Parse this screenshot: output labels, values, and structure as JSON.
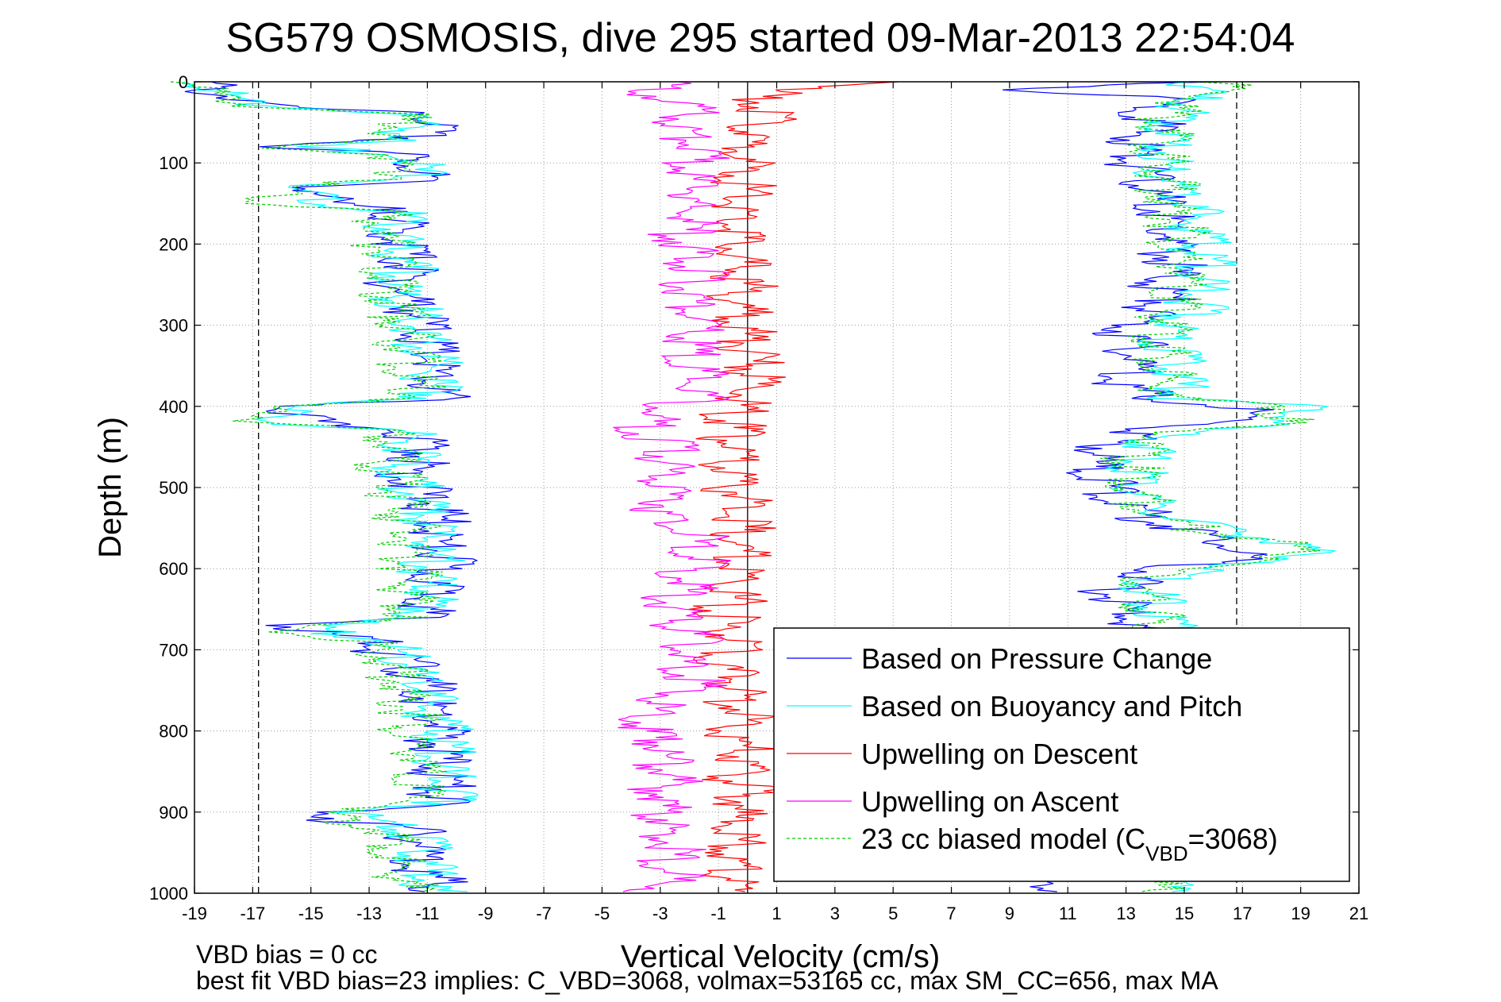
{
  "chart_data": {
    "type": "line",
    "title": "SG579 OSMOSIS, dive 295 started 09-Mar-2013 22:54:04",
    "xlabel": "Vertical Velocity (cm/s)",
    "ylabel": "Depth (m)",
    "xlim": [
      -19,
      21
    ],
    "ylim": [
      0,
      1000
    ],
    "y_reversed": true,
    "grid": true,
    "legend_placement": "bottom-right",
    "xticks": [
      -19,
      -17,
      -15,
      -13,
      -11,
      -9,
      -7,
      -5,
      -3,
      -1,
      1,
      3,
      5,
      7,
      9,
      11,
      13,
      15,
      17,
      19,
      21
    ],
    "yticks": [
      0,
      100,
      200,
      300,
      400,
      500,
      600,
      700,
      800,
      900,
      1000
    ],
    "reference_lines": [
      {
        "orientation": "vertical",
        "x": -16.8,
        "style": "dashed",
        "color": "#000000"
      },
      {
        "orientation": "vertical",
        "x": 16.8,
        "style": "dashed",
        "color": "#000000"
      },
      {
        "orientation": "vertical",
        "x": 0,
        "style": "solid",
        "color": "#000000"
      }
    ],
    "depth": [
      0,
      10,
      20,
      30,
      40,
      50,
      60,
      70,
      80,
      90,
      100,
      110,
      120,
      130,
      140,
      150,
      160,
      170,
      180,
      190,
      200,
      210,
      220,
      230,
      240,
      250,
      260,
      270,
      280,
      290,
      300,
      310,
      320,
      330,
      340,
      350,
      360,
      370,
      380,
      390,
      400,
      410,
      420,
      430,
      440,
      450,
      460,
      470,
      480,
      490,
      500,
      510,
      520,
      530,
      540,
      550,
      560,
      570,
      580,
      590,
      600,
      610,
      620,
      630,
      640,
      650,
      660,
      670,
      680,
      690,
      700,
      710,
      720,
      730,
      740,
      750,
      760,
      770,
      780,
      790,
      800,
      810,
      820,
      830,
      840,
      850,
      860,
      870,
      880,
      890,
      900,
      910,
      920,
      930,
      940,
      950,
      960,
      970,
      980,
      990
    ],
    "series": [
      {
        "name": "Based on Pressure Change",
        "color": "#0000ff",
        "dash": "solid",
        "descent": [
          -18.0,
          -18.0,
          -17.0,
          -16.0,
          -10.5,
          -10.0,
          -10.5,
          -11.0,
          -16.0,
          -11.0,
          -11.0,
          -10.5,
          -10.5,
          -14.0,
          -14.0,
          -14.0,
          -11.0,
          -11.5,
          -11.5,
          -11.5,
          -11.3,
          -11.0,
          -11.2,
          -11.0,
          -11.3,
          -11.5,
          -11.2,
          -11.0,
          -10.8,
          -10.7,
          -10.5,
          -10.4,
          -10.5,
          -10.4,
          -10.2,
          -10.3,
          -10.5,
          -10.3,
          -10.2,
          -10.0,
          -15.0,
          -15.0,
          -14.5,
          -11.0,
          -10.8,
          -10.5,
          -10.5,
          -10.8,
          -11.0,
          -11.0,
          -10.8,
          -10.5,
          -10.3,
          -10.2,
          -10.0,
          -10.0,
          -10.0,
          -10.2,
          -10.0,
          -9.8,
          -10.0,
          -10.2,
          -10.3,
          -10.0,
          -10.0,
          -10.5,
          -10.8,
          -15.0,
          -14.0,
          -12.0,
          -12.0,
          -11.5,
          -11.0,
          -11.0,
          -10.5,
          -10.5,
          -10.5,
          -10.4,
          -10.2,
          -10.0,
          -10.0,
          -10.2,
          -10.0,
          -9.8,
          -10.0,
          -10.0,
          -9.9,
          -9.8,
          -10.0,
          -10.0,
          -13.5,
          -13.5,
          -11.0,
          -10.8,
          -10.5,
          -10.5,
          -10.6,
          -10.5,
          -10.3,
          -10.0
        ],
        "ascent": [
          16.0,
          10.0,
          15.0,
          14.5,
          14.5,
          14.6,
          14.2,
          14.0,
          14.0,
          13.8,
          14.0,
          14.0,
          14.2,
          14.5,
          14.5,
          14.6,
          14.8,
          15.0,
          15.0,
          15.2,
          15.0,
          15.0,
          15.2,
          15.3,
          15.0,
          14.8,
          14.8,
          15.0,
          14.5,
          14.0,
          13.8,
          13.5,
          13.8,
          14.0,
          13.8,
          14.0,
          13.8,
          13.5,
          14.0,
          14.2,
          17.5,
          17.5,
          17.2,
          14.0,
          13.5,
          13.0,
          12.8,
          12.5,
          12.5,
          12.8,
          13.0,
          13.2,
          13.5,
          14.0,
          14.5,
          15.5,
          16.5,
          17.5,
          18.0,
          17.0,
          15.0,
          14.0,
          13.5,
          13.0,
          13.3,
          13.5,
          13.8,
          14.0,
          14.0,
          14.0,
          14.0,
          14.0,
          14.0,
          14.0,
          14.0,
          14.0,
          14.0,
          14.0,
          14.0,
          14.0,
          14.0,
          14.0,
          14.0,
          14.0,
          14.0,
          14.0,
          14.0,
          14.0,
          14.0,
          14.0,
          14.0,
          14.0,
          14.0,
          14.0,
          14.0,
          14.0,
          14.0,
          14.0,
          13.0,
          11.0
        ]
      },
      {
        "name": "Based on Buoyancy and Pitch",
        "color": "#00ffff",
        "dash": "solid",
        "descent": [
          -18.0,
          -18.0,
          -17.0,
          -15.5,
          -11.0,
          -10.8,
          -11.0,
          -11.2,
          -15.0,
          -11.0,
          -11.0,
          -10.8,
          -10.8,
          -15.0,
          -14.5,
          -14.0,
          -11.5,
          -11.5,
          -11.5,
          -11.8,
          -11.5,
          -11.3,
          -11.3,
          -11.2,
          -11.3,
          -11.5,
          -11.4,
          -11.2,
          -11.0,
          -11.0,
          -10.8,
          -10.8,
          -10.6,
          -10.5,
          -10.4,
          -10.3,
          -10.2,
          -10.2,
          -10.2,
          -10.2,
          -15.5,
          -15.5,
          -15.5,
          -11.2,
          -11.0,
          -10.8,
          -10.8,
          -11.0,
          -11.2,
          -11.0,
          -11.0,
          -10.8,
          -10.5,
          -10.5,
          -10.4,
          -10.3,
          -10.3,
          -10.3,
          -10.4,
          -10.2,
          -10.4,
          -10.5,
          -10.5,
          -10.3,
          -10.3,
          -10.4,
          -10.5,
          -14.5,
          -13.5,
          -11.5,
          -11.5,
          -11.0,
          -10.8,
          -10.8,
          -10.5,
          -10.5,
          -10.5,
          -10.3,
          -10.2,
          -10.0,
          -10.0,
          -10.0,
          -10.0,
          -9.8,
          -10.0,
          -10.0,
          -9.8,
          -9.8,
          -9.8,
          -9.8,
          -13.0,
          -12.5,
          -11.0,
          -10.8,
          -10.6,
          -10.5,
          -10.5,
          -10.4,
          -10.4,
          -10.2
        ],
        "ascent": [
          16.0,
          16.0,
          15.8,
          15.5,
          15.5,
          15.3,
          15.2,
          15.0,
          15.0,
          15.0,
          15.0,
          15.0,
          15.2,
          15.4,
          15.5,
          15.6,
          15.8,
          16.0,
          16.0,
          16.2,
          16.0,
          16.0,
          16.2,
          16.3,
          16.3,
          16.0,
          16.0,
          16.0,
          16.0,
          15.5,
          15.3,
          15.0,
          15.0,
          15.2,
          15.2,
          15.5,
          15.5,
          15.3,
          15.5,
          15.5,
          19.5,
          19.8,
          19.5,
          15.5,
          15.0,
          14.3,
          14.2,
          14.0,
          14.0,
          14.0,
          14.2,
          14.4,
          14.5,
          15.0,
          15.5,
          16.5,
          18.0,
          19.5,
          20.0,
          19.5,
          16.0,
          15.0,
          14.5,
          14.5,
          14.5,
          14.8,
          15.0,
          15.0,
          15.0,
          15.0,
          15.0,
          15.0,
          15.0,
          15.0,
          15.0,
          15.0,
          15.0,
          15.0,
          15.0,
          15.0,
          15.0,
          15.0,
          15.0,
          15.0,
          15.0,
          15.0,
          15.0,
          15.0,
          15.0,
          15.0,
          15.0,
          15.0,
          15.0,
          15.0,
          15.0,
          15.0,
          15.0,
          15.0,
          15.0,
          15.0
        ]
      },
      {
        "name": "Upwelling on Descent",
        "color": "#ff0000",
        "dash": "solid",
        "values": [
          6.0,
          1.5,
          1.0,
          1.2,
          1.0,
          1.5,
          0.8,
          0.5,
          0.5,
          0.3,
          0.5,
          0.2,
          0.3,
          0.5,
          0.3,
          0.5,
          0.3,
          0.2,
          0.5,
          0.3,
          0.5,
          0.4,
          0.3,
          0.3,
          0.2,
          0.5,
          0.3,
          0.2,
          0.4,
          0.3,
          0.5,
          0.5,
          0.6,
          0.5,
          0.6,
          0.8,
          0.8,
          0.8,
          0.7,
          0.6,
          0.3,
          0.1,
          0.0,
          0.2,
          0.0,
          0.1,
          0.0,
          -0.2,
          0.0,
          0.0,
          0.1,
          0.3,
          0.5,
          0.5,
          0.4,
          0.5,
          0.3,
          0.5,
          0.4,
          0.3,
          0.2,
          0.3,
          0.2,
          0.0,
          0.2,
          -0.3,
          0.0,
          -0.5,
          0.0,
          0.2,
          0.0,
          -0.2,
          -0.3,
          0.0,
          0.2,
          0.3,
          0.0,
          0.3,
          0.5,
          0.4,
          0.3,
          0.2,
          0.5,
          0.3,
          0.5,
          0.3,
          0.2,
          0.5,
          0.3,
          0.5,
          0.2,
          0.1,
          0.3,
          0.2,
          0.0,
          0.2,
          0.3,
          0.2,
          0.1,
          0.0
        ]
      },
      {
        "name": "Upwelling on Ascent",
        "color": "#ff00ff",
        "dash": "solid",
        "values": [
          -2.0,
          -3.0,
          -2.0,
          -1.5,
          -1.5,
          -1.8,
          -1.5,
          -1.5,
          -1.2,
          -1.0,
          -1.5,
          -1.5,
          -1.5,
          -1.0,
          -1.5,
          -1.5,
          -1.5,
          -1.2,
          -1.5,
          -1.8,
          -1.5,
          -1.2,
          -1.5,
          -1.0,
          -1.2,
          -1.5,
          -1.2,
          -1.5,
          -1.3,
          -1.2,
          -1.0,
          -1.2,
          -1.5,
          -1.2,
          -1.5,
          -1.5,
          -1.0,
          -1.2,
          -1.5,
          -1.2,
          -2.0,
          -2.5,
          -2.8,
          -3.0,
          -2.5,
          -2.0,
          -2.2,
          -2.5,
          -2.2,
          -2.0,
          -2.0,
          -2.2,
          -2.0,
          -2.5,
          -2.2,
          -2.0,
          -1.0,
          -1.5,
          -1.5,
          -1.0,
          -1.5,
          -1.5,
          -1.0,
          -1.8,
          -2.0,
          -2.0,
          -1.5,
          -1.8,
          -1.5,
          -1.2,
          -1.5,
          -1.8,
          -1.5,
          -1.2,
          -1.0,
          -1.5,
          -2.0,
          -2.5,
          -3.0,
          -3.0,
          -3.0,
          -2.5,
          -2.0,
          -2.2,
          -2.5,
          -2.0,
          -2.0,
          -2.5,
          -2.0,
          -2.5,
          -2.5,
          -2.0,
          -2.2,
          -2.5,
          -2.0,
          -2.0,
          -2.3,
          -2.0,
          -2.0,
          -2.5
        ]
      },
      {
        "name": "23 cc biased model (C",
        "name_subscript": "VBD",
        "name_suffix": "=3068)",
        "color": "#00cc00",
        "dash": "dashed",
        "descent": [
          -18.5,
          -18.0,
          -17.5,
          -16.0,
          -11.5,
          -11.2,
          -11.5,
          -11.8,
          -16.5,
          -11.5,
          -11.5,
          -11.2,
          -11.2,
          -16.0,
          -15.5,
          -15.5,
          -12.0,
          -12.0,
          -12.0,
          -12.2,
          -12.0,
          -11.8,
          -11.8,
          -11.7,
          -11.8,
          -11.9,
          -11.8,
          -11.6,
          -11.5,
          -11.4,
          -11.3,
          -11.2,
          -11.2,
          -11.1,
          -11.0,
          -11.0,
          -11.0,
          -10.9,
          -10.8,
          -10.8,
          -16.0,
          -16.0,
          -16.0,
          -12.0,
          -11.8,
          -11.7,
          -11.7,
          -11.8,
          -11.8,
          -11.6,
          -11.6,
          -11.5,
          -11.3,
          -11.2,
          -11.2,
          -11.0,
          -11.1,
          -11.0,
          -11.0,
          -11.0,
          -11.0,
          -11.0,
          -11.1,
          -11.0,
          -11.0,
          -11.0,
          -11.0,
          -15.5,
          -14.5,
          -12.5,
          -12.5,
          -11.8,
          -11.5,
          -11.5,
          -11.3,
          -11.2,
          -11.2,
          -11.1,
          -11.0,
          -11.0,
          -11.0,
          -11.0,
          -11.0,
          -10.8,
          -10.8,
          -10.8,
          -10.7,
          -10.7,
          -10.7,
          -10.6,
          -14.0,
          -13.5,
          -11.8,
          -11.8,
          -11.5,
          -11.5,
          -11.5,
          -11.4,
          -11.3,
          -11.2
        ],
        "ascent": [
          17.0,
          16.5,
          16.0,
          15.5,
          15.0,
          15.0,
          14.8,
          14.8,
          14.8,
          14.7,
          14.8,
          14.8,
          15.0,
          15.0,
          15.0,
          15.0,
          15.2,
          15.3,
          15.3,
          15.5,
          15.4,
          15.3,
          15.4,
          15.5,
          15.5,
          15.3,
          15.3,
          15.3,
          15.3,
          15.0,
          15.0,
          14.8,
          14.8,
          14.8,
          14.8,
          15.0,
          15.0,
          14.8,
          15.0,
          15.0,
          19.0,
          19.2,
          19.0,
          15.0,
          14.5,
          14.0,
          13.8,
          13.8,
          13.8,
          13.8,
          14.0,
          14.0,
          14.2,
          14.5,
          15.0,
          16.0,
          17.5,
          19.0,
          19.5,
          19.0,
          15.5,
          14.5,
          14.2,
          14.0,
          14.2,
          14.4,
          14.5,
          14.5,
          14.5,
          14.5,
          14.5,
          14.5,
          14.5,
          14.5,
          14.5,
          14.5,
          14.5,
          14.5,
          14.5,
          14.5,
          14.5,
          14.5,
          14.5,
          14.5,
          14.5,
          14.5,
          14.5,
          14.5,
          14.5,
          14.5,
          14.5,
          14.5,
          14.5,
          14.5,
          14.5,
          14.5,
          14.5,
          14.5,
          14.5,
          14.5
        ]
      }
    ],
    "annotations": [
      "VBD bias = 0 cc",
      "best fit VBD bias=23 implies: C_VBD=3068, volmax=53165 cc, max SM_CC=656, max MA"
    ]
  }
}
